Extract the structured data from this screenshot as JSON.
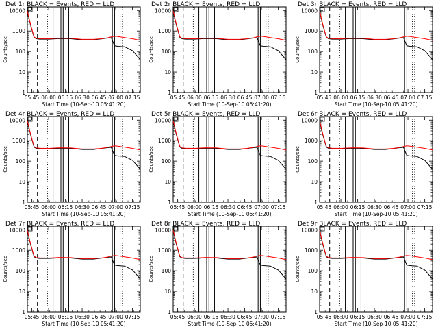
{
  "colors": {
    "events": "#000000",
    "lld": "#ff0000",
    "background": "#ffffff"
  },
  "chart_data": [
    {
      "type": "line",
      "title": "Det 1r BLACK = Events, RED = LLD",
      "xlabel": "Start Time (10-Sep-10 05:41:20)",
      "ylabel": "Counts/sec",
      "x_ticks": [
        "05:45",
        "06:00",
        "06:15",
        "06:30",
        "06:45",
        "07:00",
        "07:15"
      ],
      "y_ticks": [
        "1",
        "10",
        "100",
        "1000",
        "10000"
      ],
      "yscale": "log",
      "xlim": [
        "05:41",
        "07:22"
      ],
      "ylim": [
        1,
        15000
      ],
      "x": [
        "05:41",
        "05:44",
        "05:47",
        "05:49",
        "05:52",
        "06:00",
        "06:10",
        "06:20",
        "06:30",
        "06:40",
        "06:47",
        "06:52",
        "06:56",
        "06:59",
        "07:02",
        "07:08",
        "07:15",
        "07:22"
      ],
      "series": [
        {
          "name": "BLACK = Events",
          "values": [
            8500,
            1800,
            480,
            420,
            400,
            400,
            430,
            420,
            370,
            370,
            410,
            450,
            470,
            190,
            180,
            170,
            110,
            40
          ]
        },
        {
          "name": "RED = LLD",
          "values": [
            9500,
            2000,
            520,
            440,
            430,
            420,
            450,
            440,
            390,
            390,
            420,
            460,
            520,
            560,
            540,
            480,
            420,
            350
          ]
        }
      ]
    },
    {
      "type": "line",
      "title": "Det 2r BLACK = Events, RED = LLD",
      "xlabel": "Start Time (10-Sep-10 05:41:20)",
      "ylabel": "Counts/sec",
      "x_ticks": [
        "05:45",
        "06:00",
        "06:15",
        "06:30",
        "06:45",
        "07:00",
        "07:15"
      ],
      "y_ticks": [
        "1",
        "10",
        "100",
        "1000",
        "10000"
      ],
      "yscale": "log",
      "xlim": [
        "05:41",
        "07:22"
      ],
      "ylim": [
        1,
        15000
      ],
      "x": [
        "05:41",
        "05:44",
        "05:47",
        "05:49",
        "05:52",
        "06:00",
        "06:10",
        "06:20",
        "06:30",
        "06:40",
        "06:47",
        "06:52",
        "06:56",
        "06:59",
        "07:02",
        "07:08",
        "07:15",
        "07:22"
      ],
      "series": [
        {
          "name": "BLACK = Events",
          "values": [
            8500,
            1800,
            480,
            420,
            400,
            400,
            430,
            420,
            370,
            370,
            410,
            450,
            470,
            190,
            180,
            170,
            110,
            40
          ]
        },
        {
          "name": "RED = LLD",
          "values": [
            9500,
            2000,
            520,
            440,
            430,
            420,
            450,
            440,
            390,
            390,
            420,
            460,
            520,
            560,
            540,
            480,
            420,
            350
          ]
        }
      ]
    },
    {
      "type": "line",
      "title": "Det 3r BLACK = Events, RED = LLD",
      "xlabel": "Start Time (10-Sep-10 05:41:20)",
      "ylabel": "Counts/sec",
      "x_ticks": [
        "05:45",
        "06:00",
        "06:15",
        "06:30",
        "06:45",
        "07:00",
        "07:15"
      ],
      "y_ticks": [
        "1",
        "10",
        "100",
        "1000",
        "10000"
      ],
      "yscale": "log",
      "xlim": [
        "05:41",
        "07:22"
      ],
      "ylim": [
        1,
        15000
      ],
      "x": [
        "05:41",
        "05:44",
        "05:47",
        "05:49",
        "05:52",
        "06:00",
        "06:10",
        "06:20",
        "06:30",
        "06:40",
        "06:47",
        "06:52",
        "06:56",
        "06:59",
        "07:02",
        "07:08",
        "07:15",
        "07:22"
      ],
      "series": [
        {
          "name": "BLACK = Events",
          "values": [
            8500,
            1800,
            480,
            420,
            400,
            400,
            430,
            420,
            370,
            370,
            410,
            450,
            470,
            190,
            180,
            170,
            110,
            40
          ]
        },
        {
          "name": "RED = LLD",
          "values": [
            9500,
            2000,
            520,
            440,
            430,
            420,
            450,
            440,
            390,
            390,
            420,
            460,
            520,
            560,
            540,
            480,
            420,
            350
          ]
        }
      ]
    },
    {
      "type": "line",
      "title": "Det 4r BLACK = Events, RED = LLD",
      "xlabel": "Start Time (10-Sep-10 05:41:20)",
      "ylabel": "Counts/sec",
      "x_ticks": [
        "05:45",
        "06:00",
        "06:15",
        "06:30",
        "06:45",
        "07:00",
        "07:15"
      ],
      "y_ticks": [
        "1",
        "10",
        "100",
        "1000",
        "10000"
      ],
      "yscale": "log",
      "xlim": [
        "05:41",
        "07:22"
      ],
      "ylim": [
        1,
        15000
      ],
      "x": [
        "05:41",
        "05:44",
        "05:47",
        "05:49",
        "05:52",
        "06:00",
        "06:10",
        "06:20",
        "06:30",
        "06:40",
        "06:47",
        "06:52",
        "06:56",
        "06:59",
        "07:02",
        "07:08",
        "07:15",
        "07:22"
      ],
      "series": [
        {
          "name": "BLACK = Events",
          "values": [
            8500,
            1800,
            480,
            420,
            400,
            400,
            430,
            420,
            370,
            370,
            410,
            450,
            470,
            190,
            180,
            170,
            110,
            40
          ]
        },
        {
          "name": "RED = LLD",
          "values": [
            9500,
            2000,
            520,
            440,
            430,
            420,
            450,
            440,
            390,
            390,
            420,
            460,
            520,
            560,
            540,
            480,
            420,
            350
          ]
        }
      ]
    },
    {
      "type": "line",
      "title": "Det 5r BLACK = Events, RED = LLD",
      "xlabel": "Start Time (10-Sep-10 05:41:20)",
      "ylabel": "Counts/sec",
      "x_ticks": [
        "05:45",
        "06:00",
        "06:15",
        "06:30",
        "06:45",
        "07:00",
        "07:15"
      ],
      "y_ticks": [
        "1",
        "10",
        "100",
        "1000",
        "10000"
      ],
      "yscale": "log",
      "xlim": [
        "05:41",
        "07:22"
      ],
      "ylim": [
        1,
        15000
      ],
      "x": [
        "05:41",
        "05:44",
        "05:47",
        "05:49",
        "05:52",
        "06:00",
        "06:10",
        "06:20",
        "06:30",
        "06:40",
        "06:47",
        "06:52",
        "06:56",
        "06:59",
        "07:02",
        "07:08",
        "07:15",
        "07:22"
      ],
      "series": [
        {
          "name": "BLACK = Events",
          "values": [
            8500,
            1800,
            480,
            420,
            400,
            400,
            430,
            420,
            370,
            370,
            410,
            450,
            470,
            190,
            180,
            170,
            110,
            40
          ]
        },
        {
          "name": "RED = LLD",
          "values": [
            9500,
            2000,
            520,
            440,
            430,
            420,
            450,
            440,
            390,
            390,
            420,
            460,
            520,
            560,
            540,
            480,
            420,
            350
          ]
        }
      ]
    },
    {
      "type": "line",
      "title": "Det 6r BLACK = Events, RED = LLD",
      "xlabel": "Start Time (10-Sep-10 05:41:20)",
      "ylabel": "Counts/sec",
      "x_ticks": [
        "05:45",
        "06:00",
        "06:15",
        "06:30",
        "06:45",
        "07:00",
        "07:15"
      ],
      "y_ticks": [
        "1",
        "10",
        "100",
        "1000",
        "10000"
      ],
      "yscale": "log",
      "xlim": [
        "05:41",
        "07:22"
      ],
      "ylim": [
        1,
        15000
      ],
      "x": [
        "05:41",
        "05:44",
        "05:47",
        "05:49",
        "05:52",
        "06:00",
        "06:10",
        "06:20",
        "06:30",
        "06:40",
        "06:47",
        "06:52",
        "06:56",
        "06:59",
        "07:02",
        "07:08",
        "07:15",
        "07:22"
      ],
      "series": [
        {
          "name": "BLACK = Events",
          "values": [
            8500,
            1800,
            480,
            420,
            400,
            400,
            430,
            420,
            370,
            370,
            410,
            450,
            470,
            190,
            180,
            170,
            110,
            40
          ]
        },
        {
          "name": "RED = LLD",
          "values": [
            9500,
            2000,
            520,
            440,
            430,
            420,
            450,
            440,
            390,
            390,
            420,
            460,
            520,
            560,
            540,
            480,
            420,
            350
          ]
        }
      ]
    },
    {
      "type": "line",
      "title": "Det 7r BLACK = Events, RED = LLD",
      "xlabel": "Start Time (10-Sep-10 05:41:20)",
      "ylabel": "Counts/sec",
      "x_ticks": [
        "05:45",
        "06:00",
        "06:15",
        "06:30",
        "06:45",
        "07:00",
        "07:15"
      ],
      "y_ticks": [
        "1",
        "10",
        "100",
        "1000",
        "10000"
      ],
      "yscale": "log",
      "xlim": [
        "05:41",
        "07:22"
      ],
      "ylim": [
        1,
        15000
      ],
      "x": [
        "05:41",
        "05:44",
        "05:47",
        "05:49",
        "05:52",
        "06:00",
        "06:10",
        "06:20",
        "06:30",
        "06:40",
        "06:47",
        "06:52",
        "06:56",
        "06:59",
        "07:02",
        "07:08",
        "07:15",
        "07:22"
      ],
      "series": [
        {
          "name": "BLACK = Events",
          "values": [
            8500,
            1800,
            480,
            420,
            400,
            400,
            430,
            420,
            370,
            370,
            410,
            450,
            470,
            190,
            180,
            170,
            110,
            40
          ]
        },
        {
          "name": "RED = LLD",
          "values": [
            9500,
            2000,
            520,
            440,
            430,
            420,
            450,
            440,
            390,
            390,
            420,
            460,
            520,
            560,
            540,
            480,
            420,
            350
          ]
        }
      ]
    },
    {
      "type": "line",
      "title": "Det 8r BLACK = Events, RED = LLD",
      "xlabel": "Start Time (10-Sep-10 05:41:20)",
      "ylabel": "Counts/sec",
      "x_ticks": [
        "05:45",
        "06:00",
        "06:15",
        "06:30",
        "06:45",
        "07:00",
        "07:15"
      ],
      "y_ticks": [
        "1",
        "10",
        "100",
        "1000",
        "10000"
      ],
      "yscale": "log",
      "xlim": [
        "05:41",
        "07:22"
      ],
      "ylim": [
        1,
        15000
      ],
      "x": [
        "05:41",
        "05:44",
        "05:47",
        "05:49",
        "05:52",
        "06:00",
        "06:10",
        "06:20",
        "06:30",
        "06:40",
        "06:47",
        "06:52",
        "06:56",
        "06:59",
        "07:02",
        "07:08",
        "07:15",
        "07:22"
      ],
      "series": [
        {
          "name": "BLACK = Events",
          "values": [
            8500,
            1800,
            480,
            420,
            400,
            400,
            430,
            420,
            370,
            370,
            410,
            450,
            470,
            190,
            180,
            170,
            110,
            40
          ]
        },
        {
          "name": "RED = LLD",
          "values": [
            9500,
            2000,
            520,
            440,
            430,
            420,
            450,
            440,
            390,
            390,
            420,
            460,
            520,
            560,
            540,
            480,
            420,
            350
          ]
        }
      ]
    },
    {
      "type": "line",
      "title": "Det 9r BLACK = Events, RED = LLD",
      "xlabel": "Start Time (10-Sep-10 05:41:20)",
      "ylabel": "Counts/sec",
      "x_ticks": [
        "05:45",
        "06:00",
        "06:15",
        "06:30",
        "06:45",
        "07:00",
        "07:15"
      ],
      "y_ticks": [
        "1",
        "10",
        "100",
        "1000",
        "10000"
      ],
      "yscale": "log",
      "xlim": [
        "05:41",
        "07:22"
      ],
      "ylim": [
        1,
        15000
      ],
      "x": [
        "05:41",
        "05:44",
        "05:47",
        "05:49",
        "05:52",
        "06:00",
        "06:10",
        "06:20",
        "06:30",
        "06:40",
        "06:47",
        "06:52",
        "06:56",
        "06:59",
        "07:02",
        "07:08",
        "07:15",
        "07:22"
      ],
      "series": [
        {
          "name": "BLACK = Events",
          "values": [
            8500,
            1800,
            480,
            420,
            400,
            400,
            430,
            420,
            370,
            370,
            410,
            450,
            470,
            190,
            180,
            170,
            110,
            40
          ]
        },
        {
          "name": "RED = LLD",
          "values": [
            9500,
            2000,
            520,
            440,
            430,
            420,
            450,
            440,
            390,
            390,
            420,
            460,
            520,
            560,
            540,
            480,
            420,
            350
          ]
        }
      ]
    }
  ]
}
